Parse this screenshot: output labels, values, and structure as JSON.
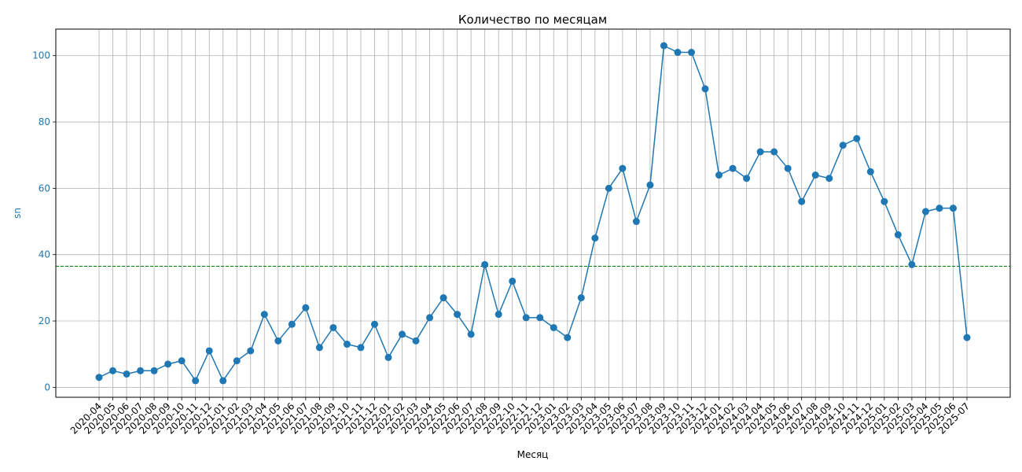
{
  "chart_data": {
    "type": "line",
    "title": "Количество по месяцам",
    "xlabel": "Месяц",
    "ylabel": "sn",
    "ylim": [
      -3,
      108
    ],
    "yticks": [
      0,
      20,
      40,
      60,
      80,
      100
    ],
    "grid": true,
    "categories": [
      "2020-04",
      "2020-05",
      "2020-06",
      "2020-07",
      "2020-08",
      "2020-09",
      "2020-10",
      "2020-11",
      "2020-12",
      "2021-01",
      "2021-02",
      "2021-03",
      "2021-04",
      "2021-05",
      "2021-06",
      "2021-07",
      "2021-08",
      "2021-09",
      "2021-10",
      "2021-11",
      "2021-12",
      "2022-01",
      "2022-02",
      "2022-03",
      "2022-04",
      "2022-05",
      "2022-06",
      "2022-07",
      "2022-08",
      "2022-09",
      "2022-10",
      "2022-11",
      "2022-12",
      "2023-01",
      "2023-02",
      "2023-03",
      "2023-04",
      "2023-05",
      "2023-06",
      "2023-07",
      "2023-08",
      "2023-09",
      "2023-10",
      "2023-11",
      "2023-12",
      "2024-01",
      "2024-02",
      "2024-03",
      "2024-04",
      "2024-05",
      "2024-06",
      "2024-07",
      "2024-08",
      "2024-09",
      "2024-10",
      "2024-11",
      "2024-12",
      "2025-01",
      "2025-02",
      "2025-03",
      "2025-04",
      "2025-05",
      "2025-06",
      "2025-07"
    ],
    "series": [
      {
        "color": "#1f77b4",
        "values": [
          3,
          5,
          4,
          5,
          5,
          7,
          8,
          2,
          11,
          2,
          8,
          11,
          22,
          14,
          19,
          24,
          12,
          18,
          13,
          12,
          19,
          9,
          16,
          14,
          21,
          27,
          22,
          16,
          37,
          22,
          32,
          21,
          21,
          18,
          15,
          27,
          45,
          60,
          66,
          50,
          61,
          103,
          101,
          101,
          90,
          64,
          66,
          63,
          71,
          71,
          66,
          56,
          64,
          63,
          73,
          75,
          65,
          56,
          46,
          37,
          53,
          54,
          54,
          15
        ]
      }
    ],
    "reference_line": {
      "y": 36.5,
      "color": "#008000",
      "style": "dashed"
    },
    "ylabel_color": "#1f77b4"
  }
}
